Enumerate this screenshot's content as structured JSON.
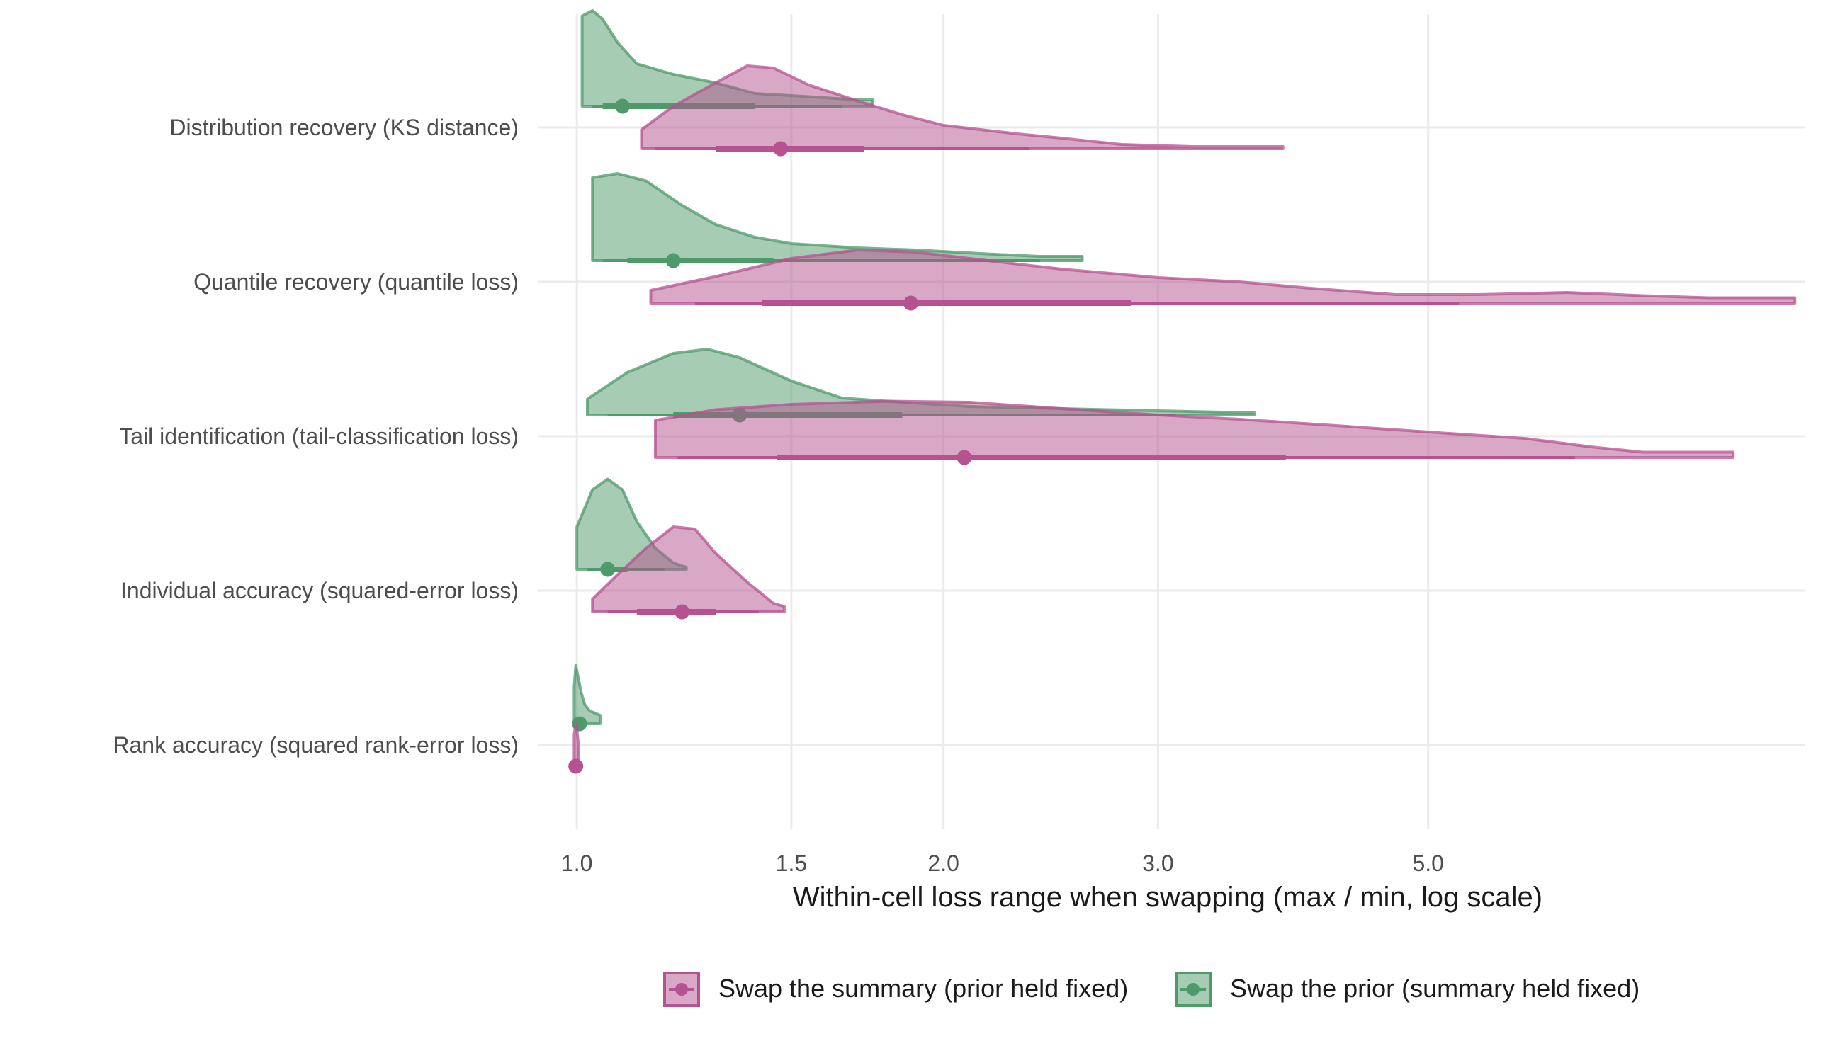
{
  "chart_data": {
    "type": "raincloud",
    "xlabel": "Within-cell loss range when swapping (max / min, log scale)",
    "ylabel": "",
    "xscale": "log",
    "xlim": [
      0.93,
      10.2
    ],
    "xticks": [
      1.0,
      1.5,
      2.0,
      3.0,
      5.0
    ],
    "xtick_labels": [
      "1.0",
      "1.5",
      "2.0",
      "3.0",
      "5.0"
    ],
    "grid": true,
    "legend_position": "bottom",
    "categories": [
      "Distribution recovery (KS distance)",
      "Quantile recovery (quantile loss)",
      "Tail identification (tail-classification loss)",
      "Individual accuracy (squared-error loss)",
      "Rank accuracy (squared rank-error loss)"
    ],
    "series": [
      {
        "name": "Swap the summary (prior held fixed)",
        "color": "#b5528f",
        "stats": [
          {
            "min": 1.13,
            "q05": 1.16,
            "q25": 1.3,
            "median": 1.47,
            "q75": 1.72,
            "q95": 2.35,
            "max": 3.8,
            "density": [
              [
                1.13,
                0.18
              ],
              [
                1.2,
                0.4
              ],
              [
                1.3,
                0.62
              ],
              [
                1.38,
                0.78
              ],
              [
                1.45,
                0.76
              ],
              [
                1.55,
                0.6
              ],
              [
                1.7,
                0.45
              ],
              [
                1.85,
                0.32
              ],
              [
                2.0,
                0.22
              ],
              [
                2.3,
                0.14
              ],
              [
                2.5,
                0.1
              ],
              [
                2.8,
                0.04
              ],
              [
                3.2,
                0.02
              ],
              [
                3.8,
                0.02
              ]
            ]
          },
          {
            "min": 1.15,
            "q05": 1.25,
            "q25": 1.42,
            "median": 1.88,
            "q75": 2.85,
            "q95": 5.3,
            "max": 10.0,
            "density": [
              [
                1.15,
                0.12
              ],
              [
                1.3,
                0.25
              ],
              [
                1.5,
                0.42
              ],
              [
                1.7,
                0.5
              ],
              [
                1.9,
                0.48
              ],
              [
                2.1,
                0.42
              ],
              [
                2.5,
                0.32
              ],
              [
                3.0,
                0.24
              ],
              [
                3.5,
                0.2
              ],
              [
                4.0,
                0.14
              ],
              [
                4.7,
                0.08
              ],
              [
                5.5,
                0.08
              ],
              [
                6.5,
                0.1
              ],
              [
                7.5,
                0.07
              ],
              [
                8.5,
                0.05
              ],
              [
                10.0,
                0.05
              ]
            ]
          },
          {
            "min": 1.16,
            "q05": 1.21,
            "q25": 1.46,
            "median": 2.08,
            "q75": 3.82,
            "q95": 6.6,
            "max": 8.9,
            "density": [
              [
                1.16,
                0.35
              ],
              [
                1.3,
                0.45
              ],
              [
                1.5,
                0.5
              ],
              [
                1.8,
                0.53
              ],
              [
                2.1,
                0.52
              ],
              [
                2.5,
                0.46
              ],
              [
                3.0,
                0.4
              ],
              [
                3.5,
                0.36
              ],
              [
                4.2,
                0.3
              ],
              [
                5.0,
                0.24
              ],
              [
                6.0,
                0.18
              ],
              [
                6.8,
                0.1
              ],
              [
                7.5,
                0.05
              ],
              [
                8.9,
                0.05
              ]
            ]
          },
          {
            "min": 1.03,
            "q05": 1.06,
            "q25": 1.12,
            "median": 1.22,
            "q75": 1.3,
            "q95": 1.41,
            "max": 1.48,
            "density": [
              [
                1.03,
                0.12
              ],
              [
                1.08,
                0.35
              ],
              [
                1.14,
                0.6
              ],
              [
                1.2,
                0.8
              ],
              [
                1.25,
                0.78
              ],
              [
                1.3,
                0.55
              ],
              [
                1.38,
                0.28
              ],
              [
                1.45,
                0.08
              ],
              [
                1.48,
                0.05
              ]
            ]
          },
          {
            "min": 0.995,
            "q05": 0.997,
            "q25": 0.998,
            "median": 0.998,
            "q75": 0.999,
            "q95": 1.0,
            "max": 1.003,
            "density": [
              [
                0.995,
                0.3
              ],
              [
                0.998,
                0.4
              ],
              [
                1.0,
                0.35
              ],
              [
                1.003,
                0.2
              ]
            ]
          }
        ]
      },
      {
        "name": "Swap the prior (summary held fixed)",
        "color": "#4e9a6a",
        "stats": [
          {
            "min": 1.01,
            "q05": 1.03,
            "q25": 1.05,
            "median": 1.09,
            "q75": 1.4,
            "q95": 1.65,
            "max": 1.75,
            "density": [
              [
                1.01,
                0.85
              ],
              [
                1.03,
                0.9
              ],
              [
                1.05,
                0.82
              ],
              [
                1.08,
                0.6
              ],
              [
                1.12,
                0.4
              ],
              [
                1.2,
                0.3
              ],
              [
                1.3,
                0.22
              ],
              [
                1.4,
                0.12
              ],
              [
                1.5,
                0.1
              ],
              [
                1.6,
                0.08
              ],
              [
                1.7,
                0.06
              ],
              [
                1.75,
                0.06
              ]
            ]
          },
          {
            "min": 1.03,
            "q05": 1.05,
            "q25": 1.1,
            "median": 1.2,
            "q75": 1.45,
            "q95": 2.4,
            "max": 2.6,
            "density": [
              [
                1.03,
                0.78
              ],
              [
                1.08,
                0.82
              ],
              [
                1.14,
                0.75
              ],
              [
                1.22,
                0.52
              ],
              [
                1.3,
                0.34
              ],
              [
                1.4,
                0.22
              ],
              [
                1.5,
                0.16
              ],
              [
                1.7,
                0.12
              ],
              [
                1.9,
                0.1
              ],
              [
                2.2,
                0.06
              ],
              [
                2.4,
                0.04
              ],
              [
                2.6,
                0.04
              ]
            ]
          },
          {
            "min": 1.02,
            "q05": 1.06,
            "q25": 1.2,
            "median": 1.36,
            "q75": 1.85,
            "q95": 3.1,
            "max": 3.6,
            "density": [
              [
                1.02,
                0.15
              ],
              [
                1.1,
                0.4
              ],
              [
                1.2,
                0.58
              ],
              [
                1.28,
                0.62
              ],
              [
                1.36,
                0.54
              ],
              [
                1.5,
                0.32
              ],
              [
                1.65,
                0.16
              ],
              [
                1.85,
                0.12
              ],
              [
                2.1,
                0.08
              ],
              [
                2.5,
                0.06
              ],
              [
                3.0,
                0.04
              ],
              [
                3.6,
                0.02
              ]
            ]
          },
          {
            "min": 1.0,
            "q05": 1.02,
            "q25": 1.05,
            "median": 1.06,
            "q75": 1.1,
            "q95": 1.18,
            "max": 1.23,
            "density": [
              [
                1.0,
                0.4
              ],
              [
                1.03,
                0.75
              ],
              [
                1.06,
                0.85
              ],
              [
                1.09,
                0.75
              ],
              [
                1.12,
                0.45
              ],
              [
                1.16,
                0.2
              ],
              [
                1.2,
                0.06
              ],
              [
                1.23,
                0.02
              ]
            ]
          },
          {
            "min": 0.995,
            "q05": 0.996,
            "q25": 0.999,
            "median": 1.005,
            "q75": 1.01,
            "q95": 1.02,
            "max": 1.045,
            "density": [
              [
                0.995,
                0.35
              ],
              [
                0.998,
                0.55
              ],
              [
                1.002,
                0.45
              ],
              [
                1.008,
                0.3
              ],
              [
                1.015,
                0.18
              ],
              [
                1.025,
                0.12
              ],
              [
                1.035,
                0.1
              ],
              [
                1.045,
                0.08
              ]
            ]
          }
        ]
      }
    ]
  }
}
